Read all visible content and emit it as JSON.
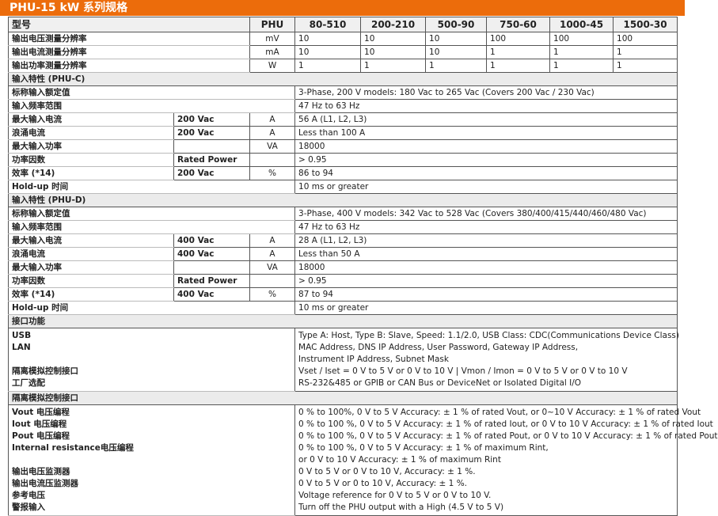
{
  "title": "PHU-15 kW 系列规格",
  "header": {
    "label": "型号",
    "unit": "PHU",
    "models": [
      "80-510",
      "200-210",
      "500-90",
      "750-60",
      "1000-45",
      "1500-30"
    ]
  },
  "resolution_rows": [
    {
      "label": "输出电压测量分辨率",
      "unit": "mV",
      "values": [
        "10",
        "10",
        "10",
        "100",
        "100",
        "100"
      ]
    },
    {
      "label": "输出电流测量分辨率",
      "unit": "mA",
      "values": [
        "10",
        "10",
        "10",
        "1",
        "1",
        "1"
      ]
    },
    {
      "label": "输出功率测量分辨率",
      "unit": "W",
      "values": [
        "1",
        "1",
        "1",
        "1",
        "1",
        "1"
      ]
    }
  ],
  "sections": [
    {
      "title": "输入特性 (PHU-C)",
      "rows": [
        {
          "label": "标称输入额定值",
          "sub": "",
          "unit": "",
          "value": "3-Phase, 200 V models: 180 Vac to 265 Vac (Covers 200 Vac / 230 Vac)"
        },
        {
          "label": "输入频率范围",
          "sub": "",
          "unit": "",
          "value": "47 Hz to 63 Hz"
        },
        {
          "label": "最大输入电流",
          "sub": "200 Vac",
          "unit": "A",
          "value": "56 A (L1, L2, L3)"
        },
        {
          "label": "浪涌电流",
          "sub": "200 Vac",
          "unit": "A",
          "value": "Less than 100 A"
        },
        {
          "label": "最大输入功率",
          "sub": "",
          "unit": "VA",
          "value": "18000"
        },
        {
          "label": "功率因数",
          "sub": "Rated Power",
          "unit": "",
          "value": "> 0.95"
        },
        {
          "label": "效率 (*14)",
          "sub": "200 Vac",
          "unit": "%",
          "value": "86 to 94"
        },
        {
          "label": "Hold-up 时间",
          "sub": "",
          "unit": "",
          "value": "10 ms or greater"
        }
      ]
    },
    {
      "title": "输入特性 (PHU-D)",
      "rows": [
        {
          "label": "标称输入额定值",
          "sub": "",
          "unit": "",
          "value": "3-Phase, 400 V models: 342 Vac to 528 Vac (Covers 380/400/415/440/460/480 Vac)"
        },
        {
          "label": "输入频率范围",
          "sub": "",
          "unit": "",
          "value": "47 Hz to 63 Hz"
        },
        {
          "label": "最大输入电流",
          "sub": "400 Vac",
          "unit": "A",
          "value": "28 A (L1, L2, L3)"
        },
        {
          "label": "浪涌电流",
          "sub": "400 Vac",
          "unit": "A",
          "value": "Less than 50 A"
        },
        {
          "label": "最大输入功率",
          "sub": "",
          "unit": "VA",
          "value": "18000"
        },
        {
          "label": "功率因数",
          "sub": "Rated Power",
          "unit": "",
          "value": "> 0.95"
        },
        {
          "label": "效率 (*14)",
          "sub": "400 Vac",
          "unit": "%",
          "value": "87 to 94"
        },
        {
          "label": "Hold-up 时间",
          "sub": "",
          "unit": "",
          "value": "10 ms or greater"
        }
      ]
    }
  ],
  "interface": {
    "title": "接口功能",
    "labels": [
      "USB",
      "LAN",
      "",
      "隔离模拟控制接口",
      "工厂选配"
    ],
    "values": [
      "Type A: Host, Type B: Slave, Speed: 1.1/2.0, USB Class: CDC(Communications Device Class)",
      "MAC Address, DNS IP Address, User Password, Gateway IP Address,",
      "Instrument IP Address, Subnet Mask",
      "Vset / Iset = 0 V to 5 V or 0 V to 10 V | Vmon / Imon = 0 V to 5 V or 0 V to 10 V",
      "RS-232&485 or GPIB or CAN Bus or DeviceNet or Isolated Digital I/O"
    ]
  },
  "analog": {
    "title": "隔离模拟控制接口",
    "labels": [
      "Vout 电压编程",
      "Iout 电压编程",
      "Pout 电压编程",
      "Internal resistance电压编程",
      "",
      "输出电压监测器",
      "输出电流压监测器",
      "参考电压",
      "警报输入"
    ],
    "values": [
      "0 % to 100%, 0 V to 5 V Accuracy: ± 1 % of rated Vout, or 0~10 V Accuracy: ± 1 % of rated Vout",
      "0 % to 100 %, 0 V to 5 V Accuracy: ± 1 % of rated Iout, or 0 V to 10 V Accuracy: ± 1 % of rated Iout",
      "0 % to 100 %, 0 V to 5 V Accuracy: ± 1 % of rated Pout, or 0 V to 10 V Accuracy: ± 1 % of rated Pout",
      "0 % to 100 %, 0 V to 5 V Accuracy: ± 1 % of maximum Rint,",
      "or 0 V to 10 V Accuracy: ± 1 % of maximum Rint",
      "0 V to 5 V or 0 V to 10 V, Accuracy: ± 1 %.",
      "0 V to 5 V or 0 to 10 V, Accuracy: ± 1 %.",
      "Voltage reference for 0 V to 5 V or 0 V to 10 V.",
      "Turn off the PHU output with a High (4.5 V to 5 V)"
    ]
  }
}
